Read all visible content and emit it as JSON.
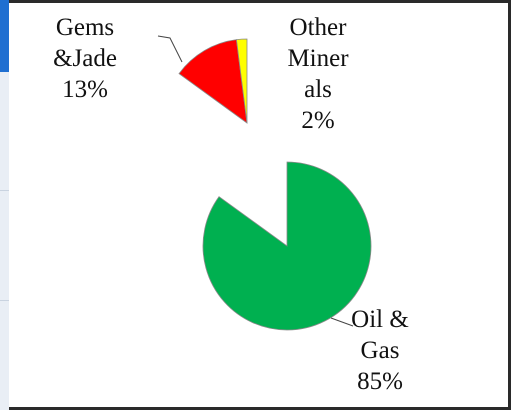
{
  "chart_data": {
    "type": "pie",
    "slices": [
      {
        "label_lines": [
          "Oil &",
          "Gas",
          "85%"
        ],
        "value": 85,
        "color": "#00b050"
      },
      {
        "label_lines": [
          "Gems",
          "&Jade",
          "13%"
        ],
        "value": 13,
        "color": "#ff0000"
      },
      {
        "label_lines": [
          "Other",
          "Miner",
          "als",
          "2%"
        ],
        "value": 2,
        "color": "#ffff00"
      }
    ],
    "legend": "none",
    "exploded": true
  }
}
